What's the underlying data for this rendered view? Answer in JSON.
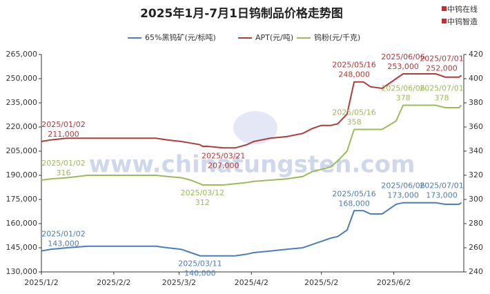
{
  "chart_data": {
    "type": "line",
    "title": "2025年1月-7月1日钨制品价格走势图",
    "brand": [
      "中钨在线",
      "中钨智造"
    ],
    "watermark": "www.chinatungsten.com",
    "x": [
      "2025/1/2",
      "2025/1/6",
      "2025/1/13",
      "2025/1/22",
      "2025/2/20",
      "2025/2/25",
      "2025/3/3",
      "2025/3/7",
      "2025/3/11",
      "2025/3/12",
      "2025/3/14",
      "2025/3/21",
      "2025/3/26",
      "2025/3/31",
      "2025/4/3",
      "2025/4/10",
      "2025/4/17",
      "2025/4/24",
      "2025/4/28",
      "2025/5/2",
      "2025/5/6",
      "2025/5/9",
      "2025/5/13",
      "2025/5/16",
      "2025/5/20",
      "2025/5/23",
      "2025/5/28",
      "2025/6/3",
      "2025/6/6",
      "2025/6/20",
      "2025/6/24",
      "2025/6/30",
      "2025/7/1"
    ],
    "xlim": [
      "2025/1/2",
      "2025/7/2"
    ],
    "xticks": [
      "2025/1/2",
      "2025/2/2",
      "2025/3/2",
      "2025/4/2",
      "2025/5/2",
      "2025/6/2"
    ],
    "ylim": [
      130000,
      265000
    ],
    "yticks": [
      {
        "value": 130000,
        "label": "130,000"
      },
      {
        "value": 145000,
        "label": "145,000"
      },
      {
        "value": 160000,
        "label": "160,000"
      },
      {
        "value": 175000,
        "label": "175,000"
      },
      {
        "value": 190000,
        "label": "190,000"
      },
      {
        "value": 205000,
        "label": "205,000"
      },
      {
        "value": 220000,
        "label": "220,000"
      },
      {
        "value": 235000,
        "label": "235,000"
      },
      {
        "value": 250000,
        "label": "250,000"
      },
      {
        "value": 265000,
        "label": "265,000"
      }
    ],
    "y2lim": [
      240,
      420
    ],
    "y2ticks": [
      240,
      260,
      280,
      300,
      320,
      340,
      360,
      380,
      400,
      420
    ],
    "grid": false,
    "series": [
      {
        "name": "65%黑钨矿(元/标吨)",
        "color": "#4a7eb8",
        "values": [
          143000,
          144000,
          145000,
          146000,
          146000,
          145000,
          144000,
          142000,
          140000,
          140000,
          140000,
          140000,
          140000,
          141000,
          142000,
          143000,
          144000,
          145000,
          147000,
          149000,
          151000,
          152000,
          156000,
          168000,
          168000,
          166000,
          166000,
          172000,
          173000,
          173000,
          172000,
          172000,
          173000
        ],
        "value_labels": [
          "143,000",
          null,
          null,
          null,
          null,
          null,
          null,
          null,
          "140,000",
          null,
          null,
          null,
          null,
          null,
          null,
          null,
          null,
          null,
          null,
          null,
          null,
          null,
          null,
          "168,000",
          null,
          null,
          null,
          null,
          "173,000",
          null,
          null,
          null,
          "173,000"
        ],
        "date_labels": [
          "2025/01/02",
          null,
          null,
          null,
          null,
          null,
          null,
          null,
          "2025/03/11",
          null,
          null,
          null,
          null,
          null,
          null,
          null,
          null,
          null,
          null,
          null,
          null,
          null,
          null,
          "2025/05/16",
          null,
          null,
          null,
          null,
          "2025/06/06",
          null,
          null,
          null,
          "2025/07/01"
        ]
      },
      {
        "name": "APT(元/吨)",
        "color": "#b03a3a",
        "values": [
          211000,
          212000,
          213000,
          213000,
          213000,
          212000,
          211000,
          210000,
          209000,
          208000,
          208000,
          207000,
          207000,
          209000,
          211000,
          213000,
          214000,
          216000,
          219000,
          221000,
          221000,
          222000,
          228000,
          248000,
          248000,
          245000,
          244000,
          250000,
          253000,
          253000,
          251000,
          251000,
          252000
        ],
        "value_labels": [
          "211,000",
          null,
          null,
          null,
          null,
          null,
          null,
          null,
          null,
          null,
          null,
          "207,000",
          null,
          null,
          null,
          null,
          null,
          null,
          null,
          null,
          null,
          null,
          null,
          "248,000",
          null,
          null,
          null,
          null,
          "253,000",
          null,
          null,
          null,
          "252,000"
        ],
        "date_labels": [
          "2025/01/02",
          null,
          null,
          null,
          null,
          null,
          null,
          null,
          null,
          null,
          null,
          "2025/03/21",
          null,
          null,
          null,
          null,
          null,
          null,
          null,
          null,
          null,
          null,
          null,
          "2025/05/16",
          null,
          null,
          null,
          null,
          "2025/06/06",
          null,
          null,
          null,
          "2025/07/01"
        ]
      },
      {
        "name": "钨粉(元/千克)",
        "color": "#9bbb59",
        "axis": "y2",
        "values": [
          316,
          317,
          318,
          320,
          320,
          319,
          318,
          316,
          313,
          312,
          312,
          312,
          313,
          314,
          315,
          316,
          317,
          319,
          323,
          325,
          327,
          332,
          340,
          358,
          358,
          358,
          358,
          365,
          378,
          378,
          376,
          376,
          378
        ],
        "date_labels": [
          "2025/01/02",
          null,
          null,
          null,
          null,
          null,
          null,
          null,
          null,
          "2025/03/12",
          null,
          null,
          null,
          null,
          null,
          null,
          null,
          null,
          null,
          null,
          null,
          null,
          null,
          "2025/05/16",
          null,
          null,
          null,
          null,
          "2025/06/06",
          null,
          null,
          null,
          "2025/07/01"
        ]
      }
    ]
  }
}
